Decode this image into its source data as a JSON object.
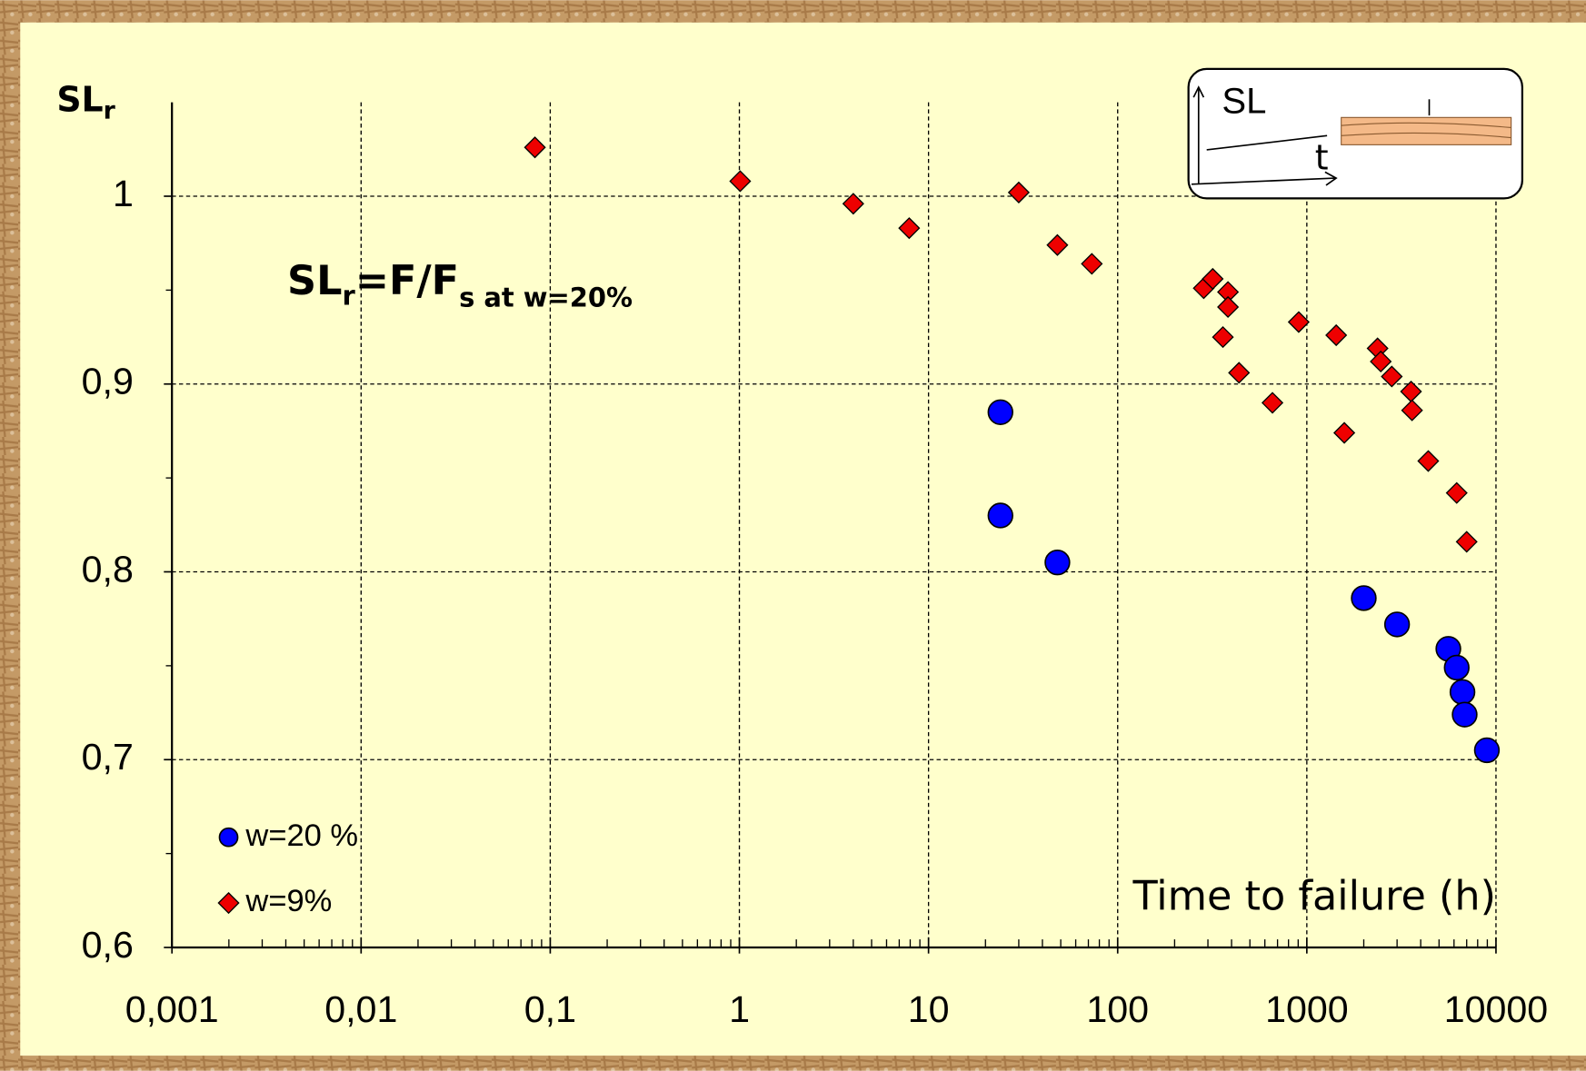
{
  "chart_data": {
    "type": "scatter",
    "ylabel": [
      "SL",
      "r"
    ],
    "xlabel": "Time to failure (h)",
    "annotation": [
      "SL",
      "r",
      "=F/F",
      "s at w=20%"
    ],
    "inset": {
      "y": "SL",
      "x": "t"
    },
    "xscale": "log",
    "grid": true,
    "legend": "lower left",
    "xlim": [
      0.001,
      10000
    ],
    "ylim": [
      0.6,
      1.05
    ],
    "xticks": [
      {
        "value": 0.001,
        "label": "0,001"
      },
      {
        "value": 0.01,
        "label": "0,01"
      },
      {
        "value": 0.1,
        "label": "0,1"
      },
      1,
      10,
      100,
      1000,
      10000
    ],
    "yticks": [
      {
        "value": 0.6,
        "label": "0,6"
      },
      {
        "value": 0.7,
        "label": "0,7"
      },
      {
        "value": 0.8,
        "label": "0,8"
      },
      {
        "value": 0.9,
        "label": "0,9"
      },
      1
    ],
    "series": [
      {
        "name": "w=20 %",
        "color": "#0000ff",
        "marker": "circle",
        "x": [
          24,
          24,
          48,
          2000,
          3000,
          5600,
          6200,
          6650,
          6830,
          8950
        ],
        "values": [
          0.885,
          0.83,
          0.805,
          0.786,
          0.772,
          0.759,
          0.749,
          0.736,
          0.724,
          0.705
        ]
      },
      {
        "name": "w=9%",
        "color": "#ee0000",
        "marker": "diamond",
        "x": [
          0.083,
          1.01,
          4,
          7.9,
          30,
          48,
          73,
          285,
          318,
          383,
          383,
          360,
          438,
          658,
          906,
          1430,
          1578,
          2366,
          2460,
          2813,
          3556,
          3600,
          4385,
          6200,
          7000
        ],
        "values": [
          1.026,
          1.008,
          0.996,
          0.983,
          1.002,
          0.974,
          0.964,
          0.951,
          0.956,
          0.949,
          0.941,
          0.925,
          0.906,
          0.89,
          0.933,
          0.926,
          0.874,
          0.919,
          0.912,
          0.904,
          0.896,
          0.886,
          0.859,
          0.842,
          0.816
        ]
      }
    ]
  }
}
